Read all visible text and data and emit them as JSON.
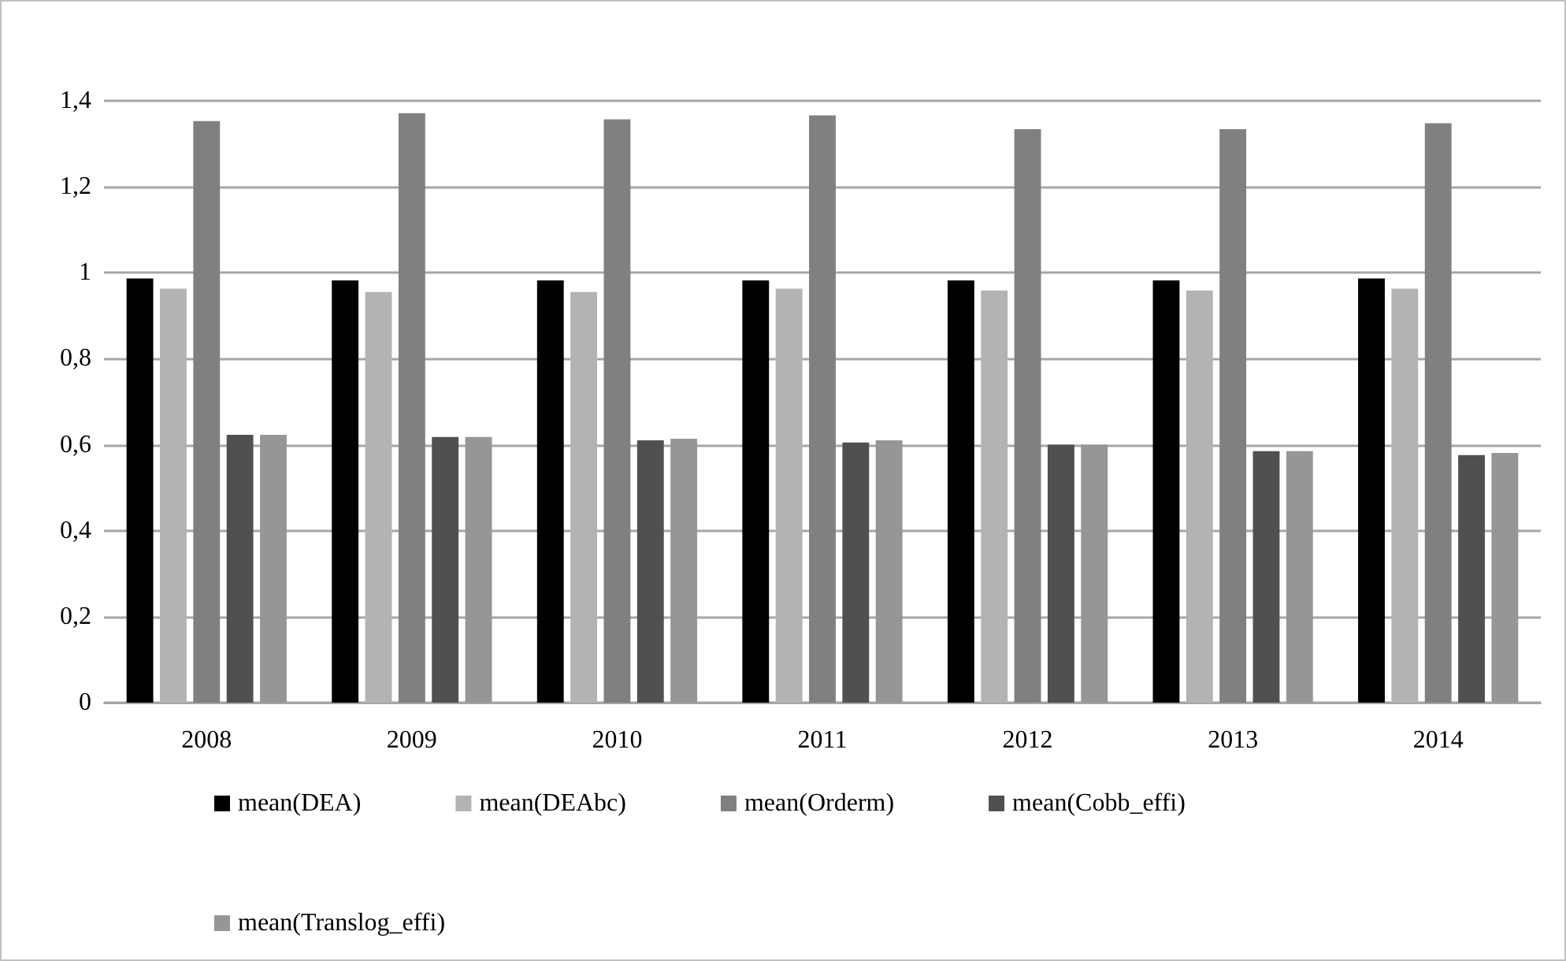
{
  "chart_data": {
    "type": "bar",
    "categories": [
      "2008",
      "2009",
      "2010",
      "2011",
      "2012",
      "2013",
      "2014"
    ],
    "series": [
      {
        "name": "mean(DEA)",
        "color": "#000000",
        "values": [
          0.987,
          0.982,
          0.982,
          0.982,
          0.982,
          0.982,
          0.987
        ]
      },
      {
        "name": "mean(DEAbc)",
        "color": "#b3b3b3",
        "values": [
          0.963,
          0.955,
          0.955,
          0.963,
          0.959,
          0.959,
          0.963
        ]
      },
      {
        "name": "mean(Orderm)",
        "color": "#808080",
        "values": [
          1.353,
          1.371,
          1.357,
          1.366,
          1.334,
          1.334,
          1.348
        ]
      },
      {
        "name": "mean(Cobb_effi)",
        "color": "#505050",
        "values": [
          0.623,
          0.618,
          0.61,
          0.605,
          0.6,
          0.585,
          0.576
        ]
      },
      {
        "name": "mean(Translog_effi)",
        "color": "#969696",
        "values": [
          0.623,
          0.618,
          0.614,
          0.61,
          0.6,
          0.585,
          0.581
        ]
      }
    ],
    "ylim": [
      0,
      1.4
    ],
    "yticks": [
      {
        "value": 0,
        "label": "0"
      },
      {
        "value": 0.2,
        "label": "0,2"
      },
      {
        "value": 0.4,
        "label": "0,4"
      },
      {
        "value": 0.6,
        "label": "0,6"
      },
      {
        "value": 0.8,
        "label": "0,8"
      },
      {
        "value": 1,
        "label": "1"
      },
      {
        "value": 1.2,
        "label": "1,2"
      },
      {
        "value": 1.4,
        "label": "1,4"
      }
    ],
    "grid": "y",
    "legend": "bottom"
  }
}
